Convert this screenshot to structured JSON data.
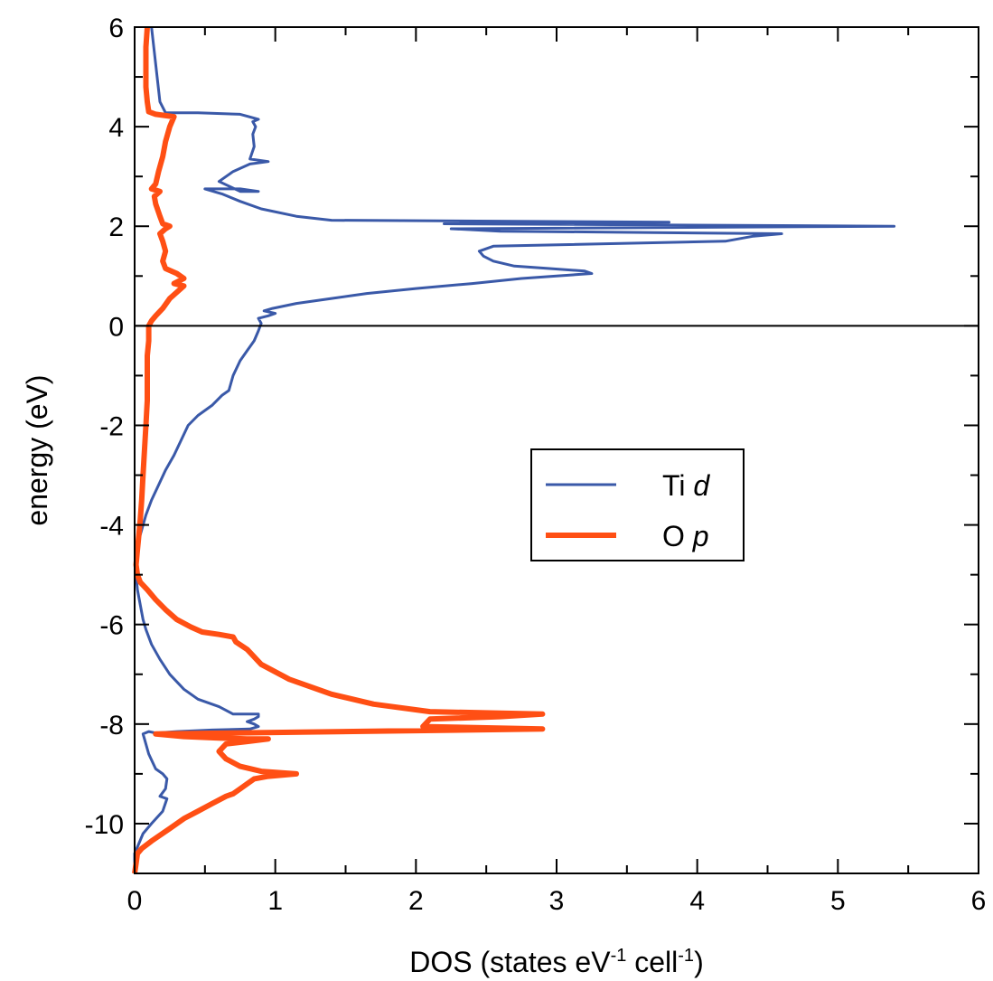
{
  "chart_data": {
    "type": "line",
    "orientation": "energy-vertical",
    "xlabel": {
      "main": "DOS (states eV",
      "sup1": "-1",
      "mid": " cell",
      "sup2": "-1",
      "end": ")"
    },
    "ylabel": "energy (eV)",
    "xlim": [
      0,
      6
    ],
    "ylim": [
      -11,
      6
    ],
    "xticks": [
      0,
      1,
      2,
      3,
      4,
      5,
      6
    ],
    "yticks": [
      -10,
      -8,
      -6,
      -4,
      -2,
      0,
      2,
      4,
      6
    ],
    "xtick_labels": [
      "0",
      "1",
      "2",
      "3",
      "4",
      "5",
      "6"
    ],
    "ytick_labels": [
      "-10",
      "-8",
      "-6",
      "-4",
      "-2",
      "0",
      "2",
      "4",
      "6"
    ],
    "legend_position": "center-right",
    "zero_line": true,
    "grid": false,
    "series": [
      {
        "name": "Ti",
        "name_italic": "d",
        "color": "#3a59a8",
        "points": [
          [
            0.0,
            -11.0
          ],
          [
            0.0,
            -10.6
          ],
          [
            0.03,
            -10.4
          ],
          [
            0.06,
            -10.2
          ],
          [
            0.12,
            -10.0
          ],
          [
            0.2,
            -9.75
          ],
          [
            0.23,
            -9.5
          ],
          [
            0.18,
            -9.45
          ],
          [
            0.22,
            -9.3
          ],
          [
            0.23,
            -9.1
          ],
          [
            0.2,
            -9.0
          ],
          [
            0.15,
            -8.9
          ],
          [
            0.1,
            -8.6
          ],
          [
            0.07,
            -8.3
          ],
          [
            0.06,
            -8.2
          ],
          [
            0.1,
            -8.15
          ],
          [
            0.15,
            -8.18
          ],
          [
            0.3,
            -8.15
          ],
          [
            0.55,
            -8.12
          ],
          [
            0.82,
            -8.1
          ],
          [
            0.88,
            -8.05
          ],
          [
            0.85,
            -8.0
          ],
          [
            0.8,
            -7.95
          ],
          [
            0.85,
            -7.9
          ],
          [
            0.88,
            -7.85
          ],
          [
            0.88,
            -7.8
          ],
          [
            0.7,
            -7.8
          ],
          [
            0.6,
            -7.65
          ],
          [
            0.45,
            -7.5
          ],
          [
            0.35,
            -7.3
          ],
          [
            0.25,
            -7.0
          ],
          [
            0.18,
            -6.7
          ],
          [
            0.12,
            -6.4
          ],
          [
            0.08,
            -6.1
          ],
          [
            0.06,
            -5.9
          ],
          [
            0.04,
            -5.6
          ],
          [
            0.02,
            -5.3
          ],
          [
            0.01,
            -5.0
          ],
          [
            0.01,
            -4.7
          ],
          [
            0.02,
            -4.4
          ],
          [
            0.05,
            -4.1
          ],
          [
            0.08,
            -3.8
          ],
          [
            0.12,
            -3.5
          ],
          [
            0.17,
            -3.2
          ],
          [
            0.22,
            -2.9
          ],
          [
            0.28,
            -2.6
          ],
          [
            0.33,
            -2.3
          ],
          [
            0.38,
            -2.0
          ],
          [
            0.45,
            -1.8
          ],
          [
            0.55,
            -1.6
          ],
          [
            0.62,
            -1.4
          ],
          [
            0.67,
            -1.3
          ],
          [
            0.7,
            -1.0
          ],
          [
            0.75,
            -0.7
          ],
          [
            0.8,
            -0.5
          ],
          [
            0.85,
            -0.3
          ],
          [
            0.88,
            -0.1
          ],
          [
            0.9,
            0.05
          ],
          [
            0.88,
            0.15
          ],
          [
            0.95,
            0.2
          ],
          [
            1.0,
            0.25
          ],
          [
            0.92,
            0.3
          ],
          [
            0.98,
            0.35
          ],
          [
            1.15,
            0.45
          ],
          [
            1.4,
            0.55
          ],
          [
            1.65,
            0.65
          ],
          [
            2.0,
            0.75
          ],
          [
            2.4,
            0.85
          ],
          [
            2.75,
            0.95
          ],
          [
            3.0,
            1.0
          ],
          [
            3.25,
            1.05
          ],
          [
            3.2,
            1.1
          ],
          [
            2.95,
            1.15
          ],
          [
            2.7,
            1.2
          ],
          [
            2.55,
            1.3
          ],
          [
            2.48,
            1.4
          ],
          [
            2.45,
            1.5
          ],
          [
            2.55,
            1.6
          ],
          [
            4.2,
            1.7
          ],
          [
            4.4,
            1.8
          ],
          [
            4.6,
            1.85
          ],
          [
            2.6,
            1.9
          ],
          [
            2.25,
            1.95
          ],
          [
            5.4,
            2.0
          ],
          [
            2.2,
            2.05
          ],
          [
            3.8,
            2.08
          ],
          [
            1.4,
            2.12
          ],
          [
            1.15,
            2.2
          ],
          [
            0.9,
            2.35
          ],
          [
            0.75,
            2.5
          ],
          [
            0.62,
            2.65
          ],
          [
            0.5,
            2.75
          ],
          [
            0.75,
            2.75
          ],
          [
            0.88,
            2.7
          ],
          [
            0.75,
            2.7
          ],
          [
            0.6,
            2.9
          ],
          [
            0.7,
            3.1
          ],
          [
            0.82,
            3.25
          ],
          [
            0.95,
            3.3
          ],
          [
            0.82,
            3.35
          ],
          [
            0.85,
            3.6
          ],
          [
            0.84,
            3.85
          ],
          [
            0.86,
            4.0
          ],
          [
            0.84,
            4.1
          ],
          [
            0.88,
            4.15
          ],
          [
            0.75,
            4.25
          ],
          [
            0.45,
            4.28
          ],
          [
            0.22,
            4.28
          ],
          [
            0.18,
            4.5
          ],
          [
            0.16,
            5.0
          ],
          [
            0.14,
            5.5
          ],
          [
            0.12,
            6.0
          ]
        ]
      },
      {
        "name": "O",
        "name_italic": "p",
        "color": "#ff4f14",
        "points": [
          [
            0.0,
            -11.0
          ],
          [
            0.01,
            -10.8
          ],
          [
            0.02,
            -10.6
          ],
          [
            0.05,
            -10.5
          ],
          [
            0.12,
            -10.35
          ],
          [
            0.25,
            -10.1
          ],
          [
            0.35,
            -9.9
          ],
          [
            0.45,
            -9.75
          ],
          [
            0.55,
            -9.6
          ],
          [
            0.65,
            -9.45
          ],
          [
            0.7,
            -9.4
          ],
          [
            0.75,
            -9.3
          ],
          [
            0.8,
            -9.2
          ],
          [
            0.85,
            -9.1
          ],
          [
            0.95,
            -9.05
          ],
          [
            1.15,
            -9.0
          ],
          [
            0.9,
            -8.95
          ],
          [
            0.75,
            -8.85
          ],
          [
            0.65,
            -8.7
          ],
          [
            0.6,
            -8.55
          ],
          [
            0.65,
            -8.4
          ],
          [
            0.8,
            -8.35
          ],
          [
            0.95,
            -8.3
          ],
          [
            0.8,
            -8.3
          ],
          [
            0.6,
            -8.28
          ],
          [
            0.35,
            -8.25
          ],
          [
            0.15,
            -8.2
          ],
          [
            2.9,
            -8.1
          ],
          [
            2.05,
            -8.05
          ],
          [
            2.1,
            -7.9
          ],
          [
            2.6,
            -7.85
          ],
          [
            2.9,
            -7.8
          ],
          [
            2.1,
            -7.75
          ],
          [
            1.7,
            -7.6
          ],
          [
            1.4,
            -7.4
          ],
          [
            1.1,
            -7.1
          ],
          [
            0.9,
            -6.8
          ],
          [
            0.8,
            -6.5
          ],
          [
            0.72,
            -6.35
          ],
          [
            0.7,
            -6.25
          ],
          [
            0.6,
            -6.2
          ],
          [
            0.48,
            -6.15
          ],
          [
            0.4,
            -6.05
          ],
          [
            0.3,
            -5.9
          ],
          [
            0.22,
            -5.7
          ],
          [
            0.15,
            -5.5
          ],
          [
            0.09,
            -5.3
          ],
          [
            0.04,
            -5.15
          ],
          [
            0.02,
            -5.0
          ],
          [
            0.01,
            -4.8
          ],
          [
            0.02,
            -4.5
          ],
          [
            0.03,
            -4.2
          ],
          [
            0.04,
            -3.9
          ],
          [
            0.05,
            -3.5
          ],
          [
            0.06,
            -3.0
          ],
          [
            0.07,
            -2.5
          ],
          [
            0.08,
            -2.0
          ],
          [
            0.09,
            -1.5
          ],
          [
            0.09,
            -1.0
          ],
          [
            0.09,
            -0.6
          ],
          [
            0.1,
            -0.3
          ],
          [
            0.1,
            0.0
          ],
          [
            0.12,
            0.1
          ],
          [
            0.15,
            0.2
          ],
          [
            0.2,
            0.35
          ],
          [
            0.25,
            0.55
          ],
          [
            0.35,
            0.8
          ],
          [
            0.28,
            0.85
          ],
          [
            0.35,
            0.95
          ],
          [
            0.3,
            1.05
          ],
          [
            0.22,
            1.15
          ],
          [
            0.2,
            1.3
          ],
          [
            0.22,
            1.5
          ],
          [
            0.2,
            1.7
          ],
          [
            0.18,
            1.85
          ],
          [
            0.22,
            1.95
          ],
          [
            0.25,
            2.0
          ],
          [
            0.2,
            2.05
          ],
          [
            0.18,
            2.2
          ],
          [
            0.15,
            2.45
          ],
          [
            0.14,
            2.6
          ],
          [
            0.18,
            2.7
          ],
          [
            0.12,
            2.75
          ],
          [
            0.15,
            2.85
          ],
          [
            0.17,
            3.1
          ],
          [
            0.2,
            3.4
          ],
          [
            0.22,
            3.7
          ],
          [
            0.25,
            4.0
          ],
          [
            0.28,
            4.2
          ],
          [
            0.15,
            4.25
          ],
          [
            0.1,
            4.3
          ],
          [
            0.09,
            4.5
          ],
          [
            0.08,
            4.8
          ],
          [
            0.08,
            5.2
          ],
          [
            0.08,
            5.6
          ],
          [
            0.09,
            6.0
          ]
        ]
      }
    ]
  }
}
